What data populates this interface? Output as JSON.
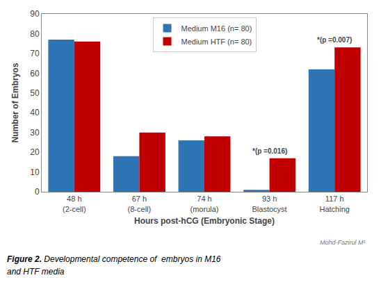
{
  "chart_data": {
    "type": "bar",
    "categories": [
      "48 h\n(2-cell)",
      "67 h\n(8-cell)",
      "74 h\n(morula)",
      "93 h\nBlastocyst",
      "117 h\nHatching"
    ],
    "series": [
      {
        "name": "Medium M16 (n= 80)",
        "color": "#2E75B6",
        "values": [
          77,
          18,
          26,
          1,
          62
        ]
      },
      {
        "name": "Medium HTF (n= 80)",
        "color": "#C00000",
        "values": [
          76,
          30,
          28,
          17,
          73
        ]
      }
    ],
    "xlabel": "Hours post-hCG (Embryonic Stage)",
    "ylabel": "Number of Embryos",
    "ylim": [
      0,
      90
    ],
    "yticks": [
      0,
      10,
      20,
      30,
      40,
      50,
      60,
      70,
      80,
      90
    ],
    "grid": false,
    "legend": "upper center",
    "annotations": [
      {
        "text": "*(p =0.016)",
        "category": "93 h\nBlastocyst"
      },
      {
        "text": "*(p =0.007)",
        "category": "117 h\nHatching"
      }
    ],
    "watermark": "Mohd-Fazirul M¹",
    "caption": [
      "Figure 2.",
      "Developmental competence of  embryos in M16",
      "and HTF media"
    ]
  }
}
